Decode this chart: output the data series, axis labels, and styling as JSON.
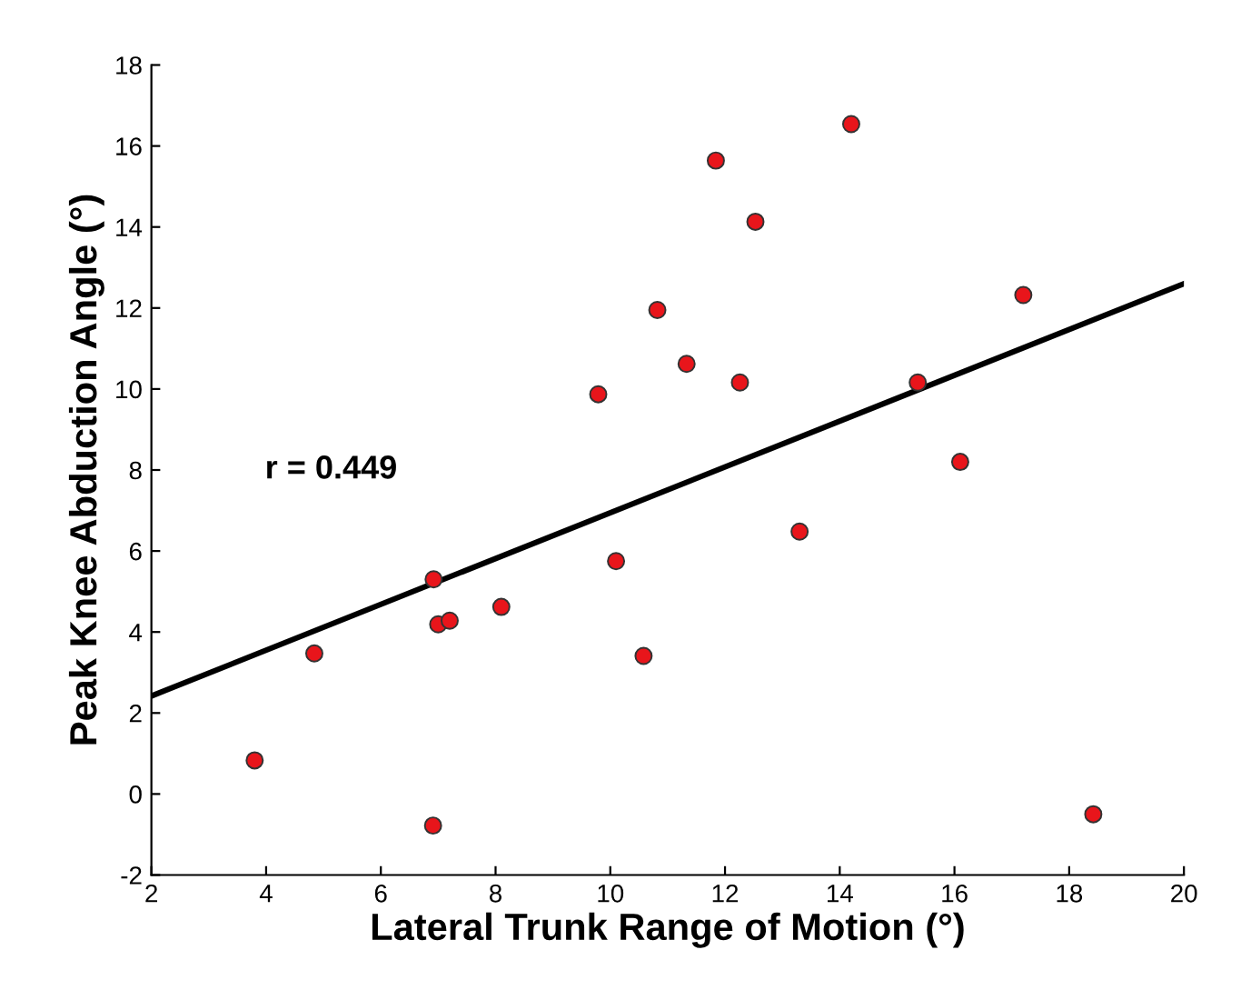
{
  "chart_data": {
    "type": "scatter",
    "xlabel": "Lateral Trunk Range of Motion (°)",
    "ylabel": "Peak Knee Abduction Angle (°)",
    "xlim": [
      2,
      20
    ],
    "ylim": [
      -2,
      18
    ],
    "xticks": [
      2,
      4,
      6,
      8,
      10,
      12,
      14,
      16,
      18,
      20
    ],
    "yticks": [
      -2,
      0,
      2,
      4,
      6,
      8,
      10,
      12,
      14,
      16,
      18
    ],
    "grid": false,
    "legend": false,
    "annotations": [
      "r = 0.449"
    ],
    "series": [
      {
        "marker": "circle",
        "color": "#e8151b",
        "x": [
          3.8,
          4.84,
          6.92,
          7.0,
          7.2,
          8.1,
          9.79,
          10.1,
          10.58,
          6.91,
          10.82,
          11.33,
          11.84,
          12.26,
          12.53,
          14.2,
          13.3,
          15.36,
          16.1,
          17.2,
          18.42
        ],
        "values": [
          0.83,
          3.47,
          5.3,
          4.19,
          4.28,
          4.62,
          9.87,
          5.75,
          3.41,
          -0.78,
          11.95,
          10.62,
          15.64,
          10.16,
          14.13,
          16.54,
          6.48,
          10.16,
          8.2,
          12.32,
          -0.5
        ]
      },
      {
        "type": "line",
        "color": "#000000",
        "line_style": "solid",
        "marker": "none",
        "x": [
          2,
          20
        ],
        "values": [
          2.42,
          12.6
        ]
      }
    ]
  }
}
